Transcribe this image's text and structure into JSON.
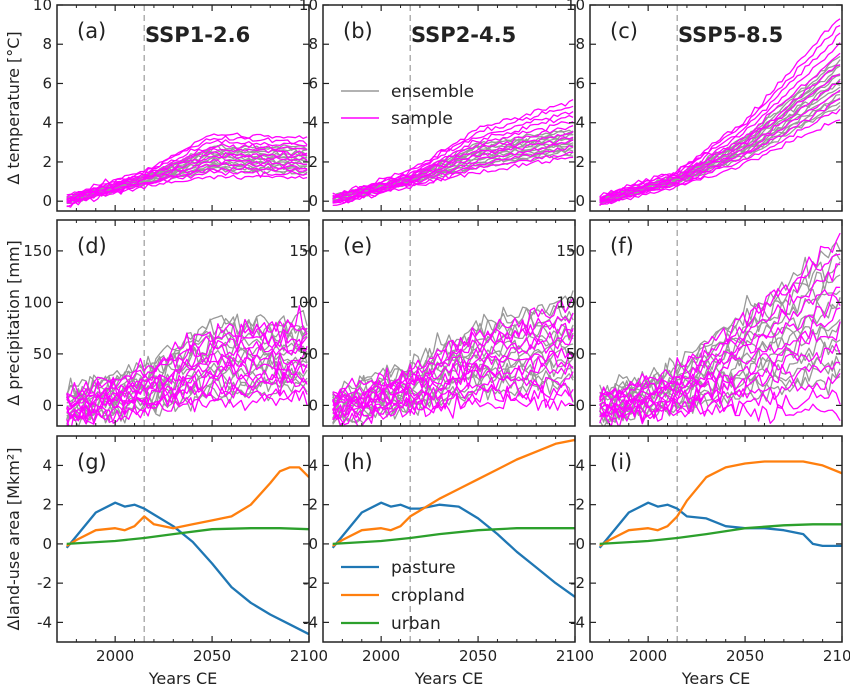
{
  "figure": {
    "scenarios": [
      "SSP1-2.6",
      "SSP2-4.5",
      "SSP5-8.5"
    ],
    "panel_letters": [
      "(a)",
      "(b)",
      "(c)",
      "(d)",
      "(e)",
      "(f)",
      "(g)",
      "(h)",
      "(i)"
    ],
    "row_ylabels": [
      "Δ temperature [°C]",
      "Δ precipitation [mm]",
      "Δland-use area [Mkm²]"
    ],
    "xlabel": "Years CE",
    "colors": {
      "ensemble": "#999999",
      "sample": "#ff00ff",
      "pasture": "#1f77b4",
      "cropland": "#ff7f0e",
      "urban": "#2ca02c",
      "vline": "#aaaaaa"
    },
    "vline_year": 2015
  },
  "chart_data": [
    {
      "type": "line",
      "panel": "(a)",
      "title": "SSP1-2.6",
      "ylabel": "Δ temperature [°C]",
      "xlabel": "",
      "xlim": [
        1970,
        2100
      ],
      "ylim": [
        -0.5,
        10
      ],
      "xticks": [
        2000,
        2050,
        2100
      ],
      "yticks": [
        0,
        2,
        4,
        6,
        8,
        10
      ],
      "legend": {
        "entries": [],
        "placement": "none"
      },
      "ensemble_envelope": {
        "x": [
          1975,
          2015,
          2050,
          2100
        ],
        "low": [
          -0.1,
          0.9,
          1.5,
          1.4
        ],
        "high": [
          0.2,
          1.3,
          2.8,
          2.8
        ]
      },
      "sample_envelope": {
        "x": [
          1975,
          2015,
          2050,
          2100
        ],
        "low": [
          -0.2,
          0.7,
          1.2,
          1.1
        ],
        "high": [
          0.3,
          1.6,
          3.5,
          3.3
        ]
      },
      "series": [
        {
          "name": "ensemble",
          "x": [
            1975,
            2015,
            2050,
            2100
          ],
          "values": [
            0.0,
            1.1,
            2.1,
            2.2
          ]
        },
        {
          "name": "sample",
          "x": [
            1975,
            2015,
            2050,
            2100
          ],
          "values": [
            0.0,
            1.1,
            2.3,
            2.2
          ]
        }
      ]
    },
    {
      "type": "line",
      "panel": "(b)",
      "title": "SSP2-4.5",
      "ylabel": "",
      "xlabel": "",
      "xlim": [
        1970,
        2100
      ],
      "ylim": [
        -0.5,
        10
      ],
      "xticks": [
        2000,
        2050,
        2100
      ],
      "yticks": [
        0,
        2,
        4,
        6,
        8,
        10
      ],
      "legend": {
        "entries": [
          "ensemble",
          "sample"
        ],
        "placement": "center"
      },
      "ensemble_envelope": {
        "x": [
          1975,
          2015,
          2050,
          2100
        ],
        "low": [
          -0.1,
          0.9,
          1.7,
          2.4
        ],
        "high": [
          0.2,
          1.3,
          3.0,
          3.7
        ]
      },
      "sample_envelope": {
        "x": [
          1975,
          2015,
          2050,
          2100
        ],
        "low": [
          -0.2,
          0.7,
          1.4,
          2.1
        ],
        "high": [
          0.3,
          1.6,
          3.8,
          5.3
        ]
      },
      "series": [
        {
          "name": "ensemble",
          "x": [
            1975,
            2015,
            2050,
            2100
          ],
          "values": [
            0.0,
            1.1,
            2.4,
            3.1
          ]
        },
        {
          "name": "sample",
          "x": [
            1975,
            2015,
            2050,
            2100
          ],
          "values": [
            0.0,
            1.1,
            2.6,
            3.5
          ]
        }
      ]
    },
    {
      "type": "line",
      "panel": "(c)",
      "title": "SSP5-8.5",
      "ylabel": "",
      "xlabel": "",
      "xlim": [
        1970,
        2100
      ],
      "ylim": [
        -0.5,
        10
      ],
      "xticks": [
        2000,
        2050,
        2100
      ],
      "yticks": [
        0,
        2,
        4,
        6,
        8,
        10
      ],
      "legend": {
        "entries": [],
        "placement": "none"
      },
      "ensemble_envelope": {
        "x": [
          1975,
          2015,
          2050,
          2100
        ],
        "low": [
          -0.1,
          0.9,
          2.2,
          4.8
        ],
        "high": [
          0.2,
          1.3,
          3.3,
          7.6
        ]
      },
      "sample_envelope": {
        "x": [
          1975,
          2015,
          2050,
          2100
        ],
        "low": [
          -0.2,
          0.7,
          1.8,
          4.0
        ],
        "high": [
          0.3,
          1.6,
          4.2,
          9.8
        ]
      },
      "series": [
        {
          "name": "ensemble",
          "x": [
            1975,
            2015,
            2050,
            2100
          ],
          "values": [
            0.0,
            1.1,
            2.8,
            6.0
          ]
        },
        {
          "name": "sample",
          "x": [
            1975,
            2015,
            2050,
            2100
          ],
          "values": [
            0.0,
            1.1,
            3.0,
            6.6
          ]
        }
      ]
    },
    {
      "type": "line",
      "panel": "(d)",
      "title": "",
      "ylabel": "Δ precipitation [mm]",
      "xlabel": "",
      "xlim": [
        1970,
        2100
      ],
      "ylim": [
        -20,
        180
      ],
      "xticks": [
        2000,
        2050,
        2100
      ],
      "yticks": [
        0,
        50,
        100,
        150
      ],
      "legend": {
        "entries": [],
        "placement": "none"
      },
      "ensemble_envelope": {
        "x": [
          1975,
          2015,
          2050,
          2100
        ],
        "low": [
          -18,
          -5,
          5,
          15
        ],
        "high": [
          15,
          40,
          85,
          85
        ]
      },
      "sample_envelope": {
        "x": [
          1975,
          2015,
          2050,
          2100
        ],
        "low": [
          -15,
          -8,
          0,
          5
        ],
        "high": [
          12,
          35,
          75,
          85
        ]
      },
      "series": [
        {
          "name": "ensemble",
          "x": [
            1975,
            2015,
            2050,
            2100
          ],
          "values": [
            0,
            15,
            40,
            45
          ]
        },
        {
          "name": "sample",
          "x": [
            1975,
            2015,
            2050,
            2100
          ],
          "values": [
            0,
            15,
            38,
            45
          ]
        }
      ]
    },
    {
      "type": "line",
      "panel": "(e)",
      "title": "",
      "ylabel": "",
      "xlabel": "",
      "xlim": [
        1970,
        2100
      ],
      "ylim": [
        -20,
        180
      ],
      "xticks": [
        2000,
        2050,
        2100
      ],
      "yticks": [
        0,
        50,
        100,
        150
      ],
      "legend": {
        "entries": [],
        "placement": "none"
      },
      "ensemble_envelope": {
        "x": [
          1975,
          2015,
          2050,
          2100
        ],
        "low": [
          -18,
          -5,
          10,
          15
        ],
        "high": [
          15,
          40,
          80,
          108
        ]
      },
      "sample_envelope": {
        "x": [
          1975,
          2015,
          2050,
          2100
        ],
        "low": [
          -15,
          -8,
          0,
          -5
        ],
        "high": [
          12,
          35,
          75,
          102
        ]
      },
      "series": [
        {
          "name": "ensemble",
          "x": [
            1975,
            2015,
            2050,
            2100
          ],
          "values": [
            0,
            15,
            45,
            60
          ]
        },
        {
          "name": "sample",
          "x": [
            1975,
            2015,
            2050,
            2100
          ],
          "values": [
            0,
            15,
            42,
            60
          ]
        }
      ]
    },
    {
      "type": "line",
      "panel": "(f)",
      "title": "",
      "ylabel": "",
      "xlabel": "",
      "xlim": [
        1970,
        2100
      ],
      "ylim": [
        -20,
        180
      ],
      "xticks": [
        2000,
        2050,
        2100
      ],
      "yticks": [
        0,
        50,
        100,
        150
      ],
      "legend": {
        "entries": [],
        "placement": "none"
      },
      "ensemble_envelope": {
        "x": [
          1975,
          2015,
          2050,
          2100
        ],
        "low": [
          -18,
          -5,
          5,
          20
        ],
        "high": [
          15,
          40,
          95,
          160
        ]
      },
      "sample_envelope": {
        "x": [
          1975,
          2015,
          2050,
          2100
        ],
        "low": [
          -15,
          -8,
          -10,
          -15
        ],
        "high": [
          12,
          35,
          90,
          175
        ]
      },
      "series": [
        {
          "name": "ensemble",
          "x": [
            1975,
            2015,
            2050,
            2100
          ],
          "values": [
            0,
            15,
            50,
            80
          ]
        },
        {
          "name": "sample",
          "x": [
            1975,
            2015,
            2050,
            2100
          ],
          "values": [
            0,
            15,
            45,
            80
          ]
        }
      ]
    },
    {
      "type": "line",
      "panel": "(g)",
      "title": "",
      "ylabel": "Δland-use area [Mkm²]",
      "xlabel": "Years CE",
      "xlim": [
        1970,
        2100
      ],
      "ylim": [
        -5,
        5.5
      ],
      "xticks": [
        2000,
        2050,
        2100
      ],
      "yticks": [
        -4,
        -2,
        0,
        2,
        4
      ],
      "legend": {
        "entries": [],
        "placement": "none"
      },
      "series": [
        {
          "name": "pasture",
          "x": [
            1975,
            1980,
            1990,
            2000,
            2005,
            2010,
            2015,
            2020,
            2030,
            2040,
            2050,
            2060,
            2070,
            2080,
            2090,
            2100
          ],
          "values": [
            -0.2,
            0.4,
            1.6,
            2.1,
            1.9,
            2.0,
            1.8,
            1.5,
            0.9,
            0.1,
            -1.0,
            -2.2,
            -3.0,
            -3.6,
            -4.1,
            -4.6
          ]
        },
        {
          "name": "cropland",
          "x": [
            1975,
            1980,
            1990,
            2000,
            2005,
            2010,
            2015,
            2020,
            2030,
            2040,
            2050,
            2060,
            2070,
            2080,
            2085,
            2090,
            2095,
            2100
          ],
          "values": [
            -0.1,
            0.2,
            0.7,
            0.8,
            0.7,
            0.9,
            1.4,
            1.0,
            0.8,
            1.0,
            1.2,
            1.4,
            2.0,
            3.1,
            3.7,
            3.9,
            3.9,
            3.4
          ]
        },
        {
          "name": "urban",
          "x": [
            1975,
            2000,
            2015,
            2030,
            2050,
            2070,
            2085,
            2100
          ],
          "values": [
            0.0,
            0.15,
            0.3,
            0.5,
            0.75,
            0.8,
            0.8,
            0.75
          ]
        }
      ]
    },
    {
      "type": "line",
      "panel": "(h)",
      "title": "",
      "ylabel": "",
      "xlabel": "Years CE",
      "xlim": [
        1970,
        2100
      ],
      "ylim": [
        -5,
        5.5
      ],
      "xticks": [
        2000,
        2050,
        2100
      ],
      "yticks": [
        -4,
        -2,
        0,
        2,
        4
      ],
      "legend": {
        "entries": [
          "pasture",
          "cropland",
          "urban"
        ],
        "placement": "lower left"
      },
      "series": [
        {
          "name": "pasture",
          "x": [
            1975,
            1980,
            1990,
            2000,
            2005,
            2010,
            2015,
            2020,
            2030,
            2040,
            2050,
            2060,
            2070,
            2080,
            2090,
            2100
          ],
          "values": [
            -0.2,
            0.4,
            1.6,
            2.1,
            1.9,
            2.0,
            1.8,
            1.8,
            2.0,
            1.9,
            1.3,
            0.5,
            -0.4,
            -1.2,
            -2.0,
            -2.7
          ]
        },
        {
          "name": "cropland",
          "x": [
            1975,
            1980,
            1990,
            2000,
            2005,
            2010,
            2015,
            2020,
            2030,
            2040,
            2050,
            2060,
            2070,
            2080,
            2090,
            2100
          ],
          "values": [
            -0.1,
            0.2,
            0.7,
            0.8,
            0.7,
            0.9,
            1.4,
            1.7,
            2.3,
            2.8,
            3.3,
            3.8,
            4.3,
            4.7,
            5.1,
            5.3
          ]
        },
        {
          "name": "urban",
          "x": [
            1975,
            2000,
            2015,
            2030,
            2050,
            2070,
            2085,
            2100
          ],
          "values": [
            0.0,
            0.15,
            0.3,
            0.5,
            0.7,
            0.8,
            0.8,
            0.8
          ]
        }
      ]
    },
    {
      "type": "line",
      "panel": "(i)",
      "title": "",
      "ylabel": "",
      "xlabel": "Years CE",
      "xlim": [
        1970,
        2100
      ],
      "ylim": [
        -5,
        5.5
      ],
      "xticks": [
        2000,
        2050,
        2100
      ],
      "yticks": [
        -4,
        -2,
        0,
        2,
        4
      ],
      "legend": {
        "entries": [],
        "placement": "none"
      },
      "series": [
        {
          "name": "pasture",
          "x": [
            1975,
            1980,
            1990,
            2000,
            2005,
            2010,
            2015,
            2020,
            2030,
            2040,
            2050,
            2060,
            2070,
            2080,
            2085,
            2090,
            2100
          ],
          "values": [
            -0.2,
            0.4,
            1.6,
            2.1,
            1.9,
            2.0,
            1.8,
            1.4,
            1.3,
            0.9,
            0.8,
            0.8,
            0.7,
            0.5,
            0.0,
            -0.1,
            -0.1
          ]
        },
        {
          "name": "cropland",
          "x": [
            1975,
            1980,
            1990,
            2000,
            2005,
            2010,
            2015,
            2020,
            2030,
            2040,
            2050,
            2060,
            2070,
            2080,
            2090,
            2100
          ],
          "values": [
            -0.1,
            0.2,
            0.7,
            0.8,
            0.7,
            0.9,
            1.4,
            2.2,
            3.4,
            3.9,
            4.1,
            4.2,
            4.2,
            4.2,
            4.0,
            3.6
          ]
        },
        {
          "name": "urban",
          "x": [
            1975,
            2000,
            2015,
            2030,
            2050,
            2070,
            2085,
            2100
          ],
          "values": [
            0.0,
            0.15,
            0.3,
            0.5,
            0.8,
            0.95,
            1.0,
            1.0
          ]
        }
      ]
    }
  ]
}
